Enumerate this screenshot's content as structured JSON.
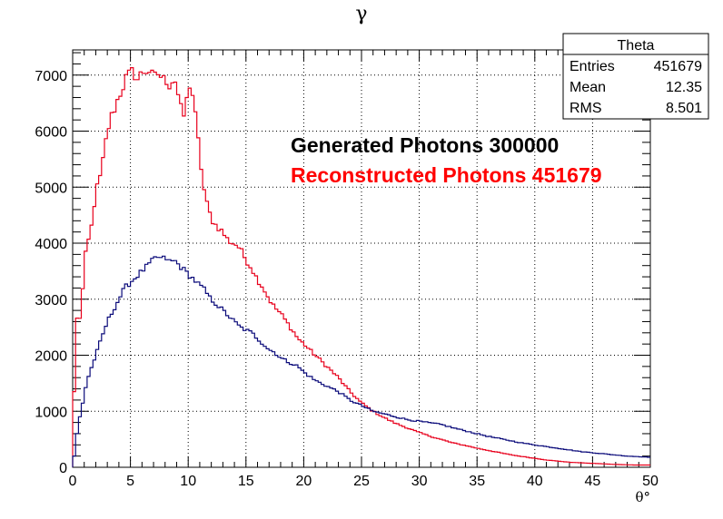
{
  "chart_data": {
    "type": "line",
    "title": "γ",
    "xlabel": "θ°",
    "ylabel": "",
    "xlim": [
      0,
      50
    ],
    "ylim": [
      0,
      7450
    ],
    "x_ticks": [
      0,
      5,
      10,
      15,
      20,
      25,
      30,
      35,
      40,
      45,
      50
    ],
    "y_ticks": [
      0,
      1000,
      2000,
      3000,
      4000,
      5000,
      6000,
      7000
    ],
    "grid": true,
    "bin_width": 0.25,
    "series": [
      {
        "color": "#e8001c",
        "x": [
          0.0,
          0.25,
          0.5,
          0.75,
          1.0,
          1.25,
          1.5,
          1.75,
          2.0,
          2.25,
          2.5,
          2.75,
          3.0,
          3.25,
          3.5,
          3.75,
          4.0,
          4.25,
          4.5,
          4.75,
          5.0,
          5.25,
          5.5,
          5.75,
          6.0,
          6.25,
          6.5,
          6.75,
          7.0,
          7.25,
          7.5,
          7.75,
          8.0,
          8.25,
          8.5,
          8.75,
          9.0,
          9.25,
          9.5,
          9.75,
          10.0,
          10.25,
          10.5,
          10.75,
          11.0,
          11.25,
          11.5,
          11.75,
          12.0,
          12.25,
          12.5,
          12.75,
          13.0,
          13.25,
          13.5,
          13.75,
          14.0,
          14.25,
          14.5,
          14.75,
          15.0,
          15.5,
          16.0,
          16.5,
          17.0,
          17.5,
          18.0,
          18.5,
          19.0,
          19.5,
          20.0,
          21.0,
          22.0,
          23.0,
          24.0,
          25.0,
          26.0,
          27.0,
          28.0,
          29.0,
          30.0,
          31.0,
          32.0,
          33.0,
          34.0,
          35.0,
          36.0,
          37.0,
          38.0,
          39.0,
          40.0,
          41.0,
          42.0,
          43.0,
          44.0,
          45.0,
          46.0,
          47.0,
          48.0,
          49.0,
          49.75
        ],
        "values": [
          0,
          2700,
          2600,
          2750,
          3600,
          4000,
          4100,
          4500,
          4900,
          5100,
          5250,
          5700,
          5950,
          6200,
          6350,
          6450,
          6650,
          6700,
          6900,
          7000,
          7020,
          7100,
          6900,
          6950,
          7070,
          7050,
          7100,
          7050,
          6950,
          7000,
          7050,
          6900,
          6950,
          6850,
          6800,
          7000,
          6800,
          6500,
          6300,
          6250,
          6850,
          6800,
          6500,
          6050,
          5600,
          5100,
          4800,
          4600,
          4450,
          4350,
          4300,
          4250,
          4200,
          4100,
          4050,
          4000,
          4000,
          3950,
          3900,
          3800,
          3700,
          3550,
          3350,
          3200,
          3000,
          2850,
          2750,
          2600,
          2450,
          2300,
          2200,
          2000,
          1800,
          1600,
          1350,
          1150,
          1000,
          880,
          780,
          700,
          620,
          550,
          490,
          430,
          390,
          340,
          300,
          260,
          220,
          190,
          160,
          130,
          110,
          90,
          80,
          70,
          60,
          50,
          45,
          40,
          40
        ]
      },
      {
        "color": "#0a0a7a",
        "x": [
          0.0,
          0.25,
          0.5,
          0.75,
          1.0,
          1.25,
          1.5,
          1.75,
          2.0,
          2.25,
          2.5,
          2.75,
          3.0,
          3.25,
          3.5,
          3.75,
          4.0,
          4.25,
          4.5,
          4.75,
          5.0,
          5.25,
          5.5,
          5.75,
          6.0,
          6.25,
          6.5,
          6.75,
          7.0,
          7.25,
          7.5,
          7.75,
          8.0,
          8.25,
          8.5,
          8.75,
          9.0,
          9.25,
          9.5,
          9.75,
          10.0,
          10.25,
          10.5,
          10.75,
          11.0,
          11.25,
          11.5,
          11.75,
          12.0,
          12.5,
          13.0,
          13.5,
          14.0,
          14.5,
          15.0,
          15.5,
          16.0,
          16.5,
          17.0,
          17.5,
          18.0,
          18.5,
          19.0,
          19.5,
          20.0,
          21.0,
          22.0,
          23.0,
          24.0,
          25.0,
          26.0,
          27.0,
          28.0,
          29.0,
          30.0,
          31.0,
          32.0,
          33.0,
          34.0,
          35.0,
          36.0,
          37.0,
          38.0,
          39.0,
          40.0,
          41.0,
          42.0,
          43.0,
          44.0,
          45.0,
          46.0,
          47.0,
          48.0,
          49.0,
          49.75
        ],
        "values": [
          0,
          400,
          800,
          1000,
          1300,
          1550,
          1700,
          1850,
          2000,
          2150,
          2300,
          2450,
          2600,
          2700,
          2800,
          2900,
          3000,
          3100,
          3200,
          3250,
          3300,
          3350,
          3400,
          3450,
          3500,
          3550,
          3600,
          3650,
          3700,
          3750,
          3750,
          3700,
          3750,
          3700,
          3650,
          3700,
          3650,
          3600,
          3550,
          3500,
          3450,
          3400,
          3350,
          3300,
          3250,
          3200,
          3150,
          3050,
          3000,
          2900,
          2800,
          2700,
          2600,
          2500,
          2450,
          2400,
          2300,
          2200,
          2100,
          2050,
          1950,
          1900,
          1850,
          1800,
          1700,
          1550,
          1450,
          1350,
          1200,
          1100,
          1000,
          950,
          900,
          850,
          820,
          790,
          760,
          700,
          650,
          600,
          550,
          510,
          470,
          430,
          400,
          370,
          340,
          310,
          280,
          260,
          240,
          220,
          200,
          190,
          180
        ]
      }
    ],
    "annotations": [
      {
        "text": "Generated Photons 300000",
        "color": "#000000"
      },
      {
        "text": "Reconstructed Photons 451679",
        "color": "#ff0000"
      }
    ]
  },
  "stats_box": {
    "title": "Theta",
    "rows": [
      {
        "label": "Entries",
        "value": "451679"
      },
      {
        "label": "Mean",
        "value": "12.35"
      },
      {
        "label": "RMS",
        "value": "8.501"
      }
    ]
  }
}
